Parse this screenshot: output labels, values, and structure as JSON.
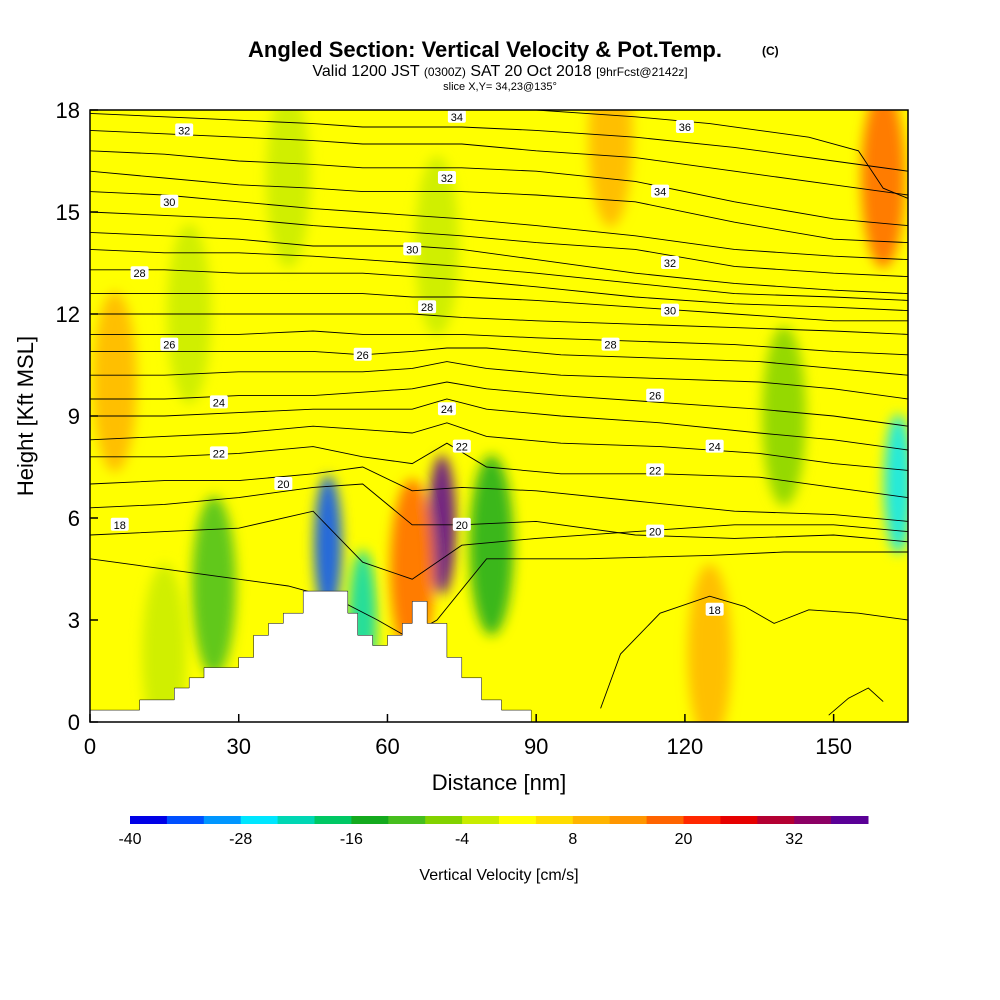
{
  "chart_data": {
    "type": "heatmap",
    "title": "Angled Section: Vertical Velocity & Pot.Temp.",
    "title_unit": "(C)",
    "subtitle_parts": [
      "Valid 1200 JST",
      "(0300Z)",
      "SAT 20 Oct 2018",
      "[9hrFcst@2142z]"
    ],
    "slice_label": "slice X,Y= 34,23@135°",
    "xlabel": "Distance [nm]",
    "ylabel": "Height [Kft MSL]",
    "xlim": [
      0,
      165
    ],
    "ylim": [
      0,
      18
    ],
    "x_ticks": [
      "0",
      "30",
      "60",
      "90",
      "120",
      "150"
    ],
    "y_ticks": [
      "0",
      "3",
      "6",
      "9",
      "12",
      "15",
      "18"
    ],
    "colorbar": {
      "label": "Vertical Velocity [cm/s]",
      "ticks": [
        "-40",
        "-28",
        "-16",
        "-4",
        "8",
        "20",
        "32"
      ],
      "colors": [
        "#0000e6",
        "#0050ff",
        "#0096ff",
        "#00e6ff",
        "#00d7b4",
        "#00c864",
        "#14aa1e",
        "#46be1e",
        "#82d200",
        "#c8ec00",
        "#ffff00",
        "#ffdc00",
        "#ffb400",
        "#ff9600",
        "#ff6400",
        "#ff2800",
        "#e60000",
        "#b40032",
        "#8c0064",
        "#5a0096"
      ]
    },
    "background_value": 0,
    "velocity_features": [
      {
        "x": 48,
        "y": 5.2,
        "value": -36
      },
      {
        "x": 55,
        "y": 3.0,
        "value": -24
      },
      {
        "x": 71,
        "y": 5.8,
        "value": 36
      },
      {
        "x": 65,
        "y": 4.5,
        "value": 18
      },
      {
        "x": 81,
        "y": 5.2,
        "value": -16
      },
      {
        "x": 163,
        "y": 7.0,
        "value": -26
      },
      {
        "x": 160,
        "y": 16.0,
        "value": 16
      },
      {
        "x": 105,
        "y": 17.2,
        "value": 10
      },
      {
        "x": 25,
        "y": 4.0,
        "value": -12
      },
      {
        "x": 125,
        "y": 2.0,
        "value": 10
      },
      {
        "x": 15,
        "y": 2.0,
        "value": -4
      },
      {
        "x": 20,
        "y": 12.0,
        "value": -4
      },
      {
        "x": 40,
        "y": 16.0,
        "value": -4
      },
      {
        "x": 70,
        "y": 14.0,
        "value": -4
      },
      {
        "x": 140,
        "y": 9.0,
        "value": -6
      },
      {
        "x": 5,
        "y": 10.0,
        "value": 10
      }
    ],
    "terrain_x": [
      0,
      10,
      10,
      17,
      17,
      20,
      20,
      23,
      23,
      30,
      30,
      33,
      33,
      36,
      36,
      39,
      39,
      43,
      43,
      52,
      52,
      54,
      54,
      57,
      57,
      60,
      60,
      63,
      63,
      65,
      65,
      68,
      68,
      72,
      72,
      75,
      75,
      79,
      79,
      83,
      83,
      89,
      89,
      165
    ],
    "terrain_y": [
      0.35,
      0.35,
      0.65,
      0.65,
      1.0,
      1.0,
      1.3,
      1.3,
      1.6,
      1.6,
      1.9,
      1.9,
      2.55,
      2.55,
      2.9,
      2.9,
      3.2,
      3.2,
      3.85,
      3.85,
      3.2,
      3.2,
      2.55,
      2.55,
      2.25,
      2.25,
      2.55,
      2.55,
      2.9,
      2.9,
      3.55,
      3.55,
      2.9,
      2.9,
      1.9,
      1.9,
      1.3,
      1.3,
      0.65,
      0.65,
      0.35,
      0.35,
      0.0,
      0.0
    ],
    "isentropes": [
      {
        "label": "18",
        "x": [
          0,
          10,
          25,
          40,
          50,
          58,
          64,
          70,
          80,
          100,
          125,
          140,
          155,
          165
        ],
        "y": [
          4.8,
          4.6,
          4.3,
          4.0,
          3.6,
          3.0,
          2.5,
          3.0,
          4.8,
          4.8,
          4.9,
          5.0,
          5.0,
          5.0
        ],
        "label_at": [
          0,
          1
        ]
      },
      {
        "label": "18",
        "x": [
          103,
          107,
          115,
          125,
          132,
          138,
          145,
          155,
          165
        ],
        "y": [
          0.4,
          2.0,
          3.2,
          3.7,
          3.4,
          2.9,
          3.3,
          3.2,
          3.0
        ],
        "label_at": [
          0,
          1
        ]
      },
      {
        "label": "18",
        "x": [
          149,
          153,
          157,
          160
        ],
        "y": [
          0.2,
          0.7,
          1.0,
          0.6
        ],
        "label_at": [
          0,
          1
        ]
      },
      {
        "label": "18",
        "x": [
          0,
          15,
          30,
          45,
          55,
          65,
          75,
          90,
          110,
          130,
          150,
          165
        ],
        "y": [
          5.5,
          5.6,
          5.7,
          6.2,
          4.7,
          4.2,
          5.2,
          5.4,
          5.6,
          5.8,
          5.8,
          5.6
        ],
        "label_at": [
          6,
          5.8
        ]
      },
      {
        "label": "20",
        "x": [
          0,
          15,
          30,
          45,
          55,
          65,
          75,
          90,
          110,
          130,
          150,
          165
        ],
        "y": [
          6.3,
          6.4,
          6.6,
          6.9,
          7.0,
          5.8,
          5.8,
          5.9,
          5.5,
          5.4,
          5.5,
          5.3
        ],
        "label_at": [
          74,
          5.8
        ]
      },
      {
        "label": "20",
        "x": [
          0,
          15,
          30,
          45,
          55,
          65,
          75,
          90,
          110,
          130,
          150,
          165
        ],
        "y": [
          7.0,
          7.1,
          7.1,
          7.3,
          7.5,
          6.8,
          6.9,
          6.8,
          6.5,
          6.2,
          6.1,
          5.9
        ],
        "label_at": [
          34,
          6.9
        ]
      },
      {
        "label": "22",
        "x": [
          0,
          15,
          30,
          45,
          55,
          65,
          72,
          80,
          95,
          115,
          135,
          150,
          165
        ],
        "y": [
          7.8,
          7.8,
          7.9,
          8.1,
          7.8,
          7.6,
          8.2,
          7.5,
          7.3,
          7.3,
          7.2,
          6.9,
          6.6
        ],
        "label_at": [
          28,
          7.8
        ]
      },
      {
        "label": "22",
        "x": [
          0,
          15,
          30,
          45,
          55,
          65,
          72,
          80,
          95,
          115,
          135,
          150,
          165
        ],
        "y": [
          8.3,
          8.4,
          8.5,
          8.7,
          8.6,
          8.5,
          8.8,
          8.4,
          8.2,
          8.1,
          7.9,
          7.6,
          7.4
        ],
        "label_at": [
          114,
          7.5
        ]
      },
      {
        "label": "24",
        "x": [
          0,
          15,
          30,
          45,
          55,
          65,
          72,
          80,
          95,
          115,
          135,
          150,
          165
        ],
        "y": [
          9.0,
          9.0,
          9.1,
          9.2,
          9.2,
          9.2,
          9.5,
          9.2,
          9.0,
          8.8,
          8.5,
          8.3,
          8.0
        ],
        "label_at": [
          72,
          9.1
        ]
      },
      {
        "label": "24",
        "x": [
          0,
          15,
          30,
          45,
          55,
          65,
          72,
          80,
          95,
          115,
          135,
          150,
          165
        ],
        "y": [
          9.5,
          9.5,
          9.6,
          9.6,
          9.7,
          9.8,
          10.0,
          9.8,
          9.6,
          9.4,
          9.2,
          9.0,
          8.7
        ],
        "label_at": [
          25,
          9.5
        ]
      },
      {
        "label": "26",
        "x": [
          0,
          15,
          30,
          45,
          55,
          65,
          72,
          80,
          95,
          115,
          135,
          150,
          165
        ],
        "y": [
          10.2,
          10.2,
          10.3,
          10.3,
          10.3,
          10.4,
          10.6,
          10.4,
          10.2,
          10.1,
          10.0,
          9.8,
          9.5
        ],
        "label_at": [
          114,
          9.8
        ]
      },
      {
        "label": "26",
        "x": [
          0,
          15,
          30,
          45,
          55,
          65,
          72,
          80,
          95,
          115,
          135,
          150,
          165
        ],
        "y": [
          10.9,
          10.9,
          10.9,
          10.9,
          10.8,
          10.9,
          11.0,
          11.0,
          10.8,
          10.7,
          10.6,
          10.4,
          10.2
        ],
        "label_at": [
          56,
          10.7
        ]
      },
      {
        "label": "28",
        "x": [
          0,
          15,
          30,
          45,
          55,
          65,
          75,
          90,
          110,
          130,
          150,
          165
        ],
        "y": [
          11.4,
          11.4,
          11.4,
          11.5,
          11.4,
          11.4,
          11.4,
          11.3,
          11.2,
          11.1,
          10.9,
          10.8
        ],
        "label_at": [
          106,
          11.1
        ]
      },
      {
        "label": "28",
        "x": [
          0,
          15,
          30,
          45,
          55,
          65,
          75,
          90,
          110,
          130,
          150,
          165
        ],
        "y": [
          12.0,
          12.0,
          12.0,
          12.0,
          12.0,
          12.0,
          11.9,
          11.8,
          11.7,
          11.6,
          11.5,
          11.4
        ],
        "label_at": [
          69,
          11.9
        ]
      },
      {
        "label": "30",
        "x": [
          0,
          15,
          30,
          45,
          55,
          65,
          75,
          90,
          110,
          130,
          150,
          165
        ],
        "y": [
          12.6,
          12.6,
          12.6,
          12.6,
          12.6,
          12.5,
          12.5,
          12.4,
          12.2,
          12.0,
          11.8,
          11.8
        ],
        "label_at": [
          117,
          12.0
        ]
      },
      {
        "label": "26",
        "x": [
          0,
          15,
          30,
          45,
          55,
          65,
          75,
          90,
          110,
          130,
          150,
          165
        ],
        "y": [
          13.3,
          13.3,
          13.2,
          13.2,
          13.2,
          13.1,
          13.0,
          12.8,
          12.5,
          12.3,
          12.2,
          12.1
        ],
        "label_at": [
          16,
          11.1
        ]
      },
      {
        "label": "28",
        "x": [
          0,
          15,
          30,
          45,
          55,
          65,
          75,
          90,
          110,
          130,
          150,
          165
        ],
        "y": [
          13.9,
          13.8,
          13.8,
          13.7,
          13.6,
          13.5,
          13.4,
          13.2,
          12.9,
          12.6,
          12.5,
          12.4
        ],
        "label_at": [
          10,
          13.2
        ]
      },
      {
        "label": "30",
        "x": [
          0,
          15,
          30,
          45,
          55,
          65,
          75,
          90,
          110,
          130,
          150,
          165
        ],
        "y": [
          14.4,
          14.3,
          14.2,
          14.0,
          14.0,
          14.0,
          13.9,
          13.6,
          13.2,
          12.9,
          12.7,
          12.6
        ],
        "label_at": [
          65,
          13.9
        ]
      },
      {
        "label": "32",
        "x": [
          0,
          15,
          30,
          45,
          55,
          65,
          75,
          90,
          110,
          130,
          150,
          165
        ],
        "y": [
          15.0,
          14.9,
          14.8,
          14.6,
          14.5,
          14.4,
          14.3,
          14.1,
          13.9,
          13.4,
          13.2,
          13.1
        ],
        "label_at": [
          117,
          13.5
        ]
      },
      {
        "label": "30",
        "x": [
          0,
          15,
          30,
          45,
          55,
          65,
          75,
          90,
          110,
          130,
          150,
          165
        ],
        "y": [
          15.6,
          15.5,
          15.3,
          15.1,
          15.0,
          14.9,
          14.8,
          14.6,
          14.3,
          13.9,
          13.7,
          13.6
        ],
        "label_at": [
          15,
          15.3
        ]
      },
      {
        "label": "32",
        "x": [
          0,
          15,
          30,
          45,
          55,
          65,
          75,
          90,
          110,
          130,
          150,
          165
        ],
        "y": [
          16.2,
          16.0,
          15.8,
          15.7,
          15.6,
          15.6,
          15.6,
          15.5,
          15.3,
          14.7,
          14.2,
          14.1
        ],
        "label_at": [
          72,
          15.6
        ]
      },
      {
        "label": "34",
        "x": [
          0,
          15,
          30,
          45,
          55,
          65,
          75,
          90,
          110,
          130,
          150,
          165
        ],
        "y": [
          16.8,
          16.7,
          16.5,
          16.4,
          16.3,
          16.3,
          16.3,
          16.2,
          15.9,
          15.3,
          14.8,
          14.6
        ],
        "label_at": [
          116,
          15.6
        ]
      },
      {
        "label": "32",
        "x": [
          0,
          15,
          30,
          45,
          55,
          65,
          75,
          90,
          110,
          130,
          150,
          165
        ],
        "y": [
          17.4,
          17.3,
          17.2,
          17.1,
          17.0,
          17.0,
          17.0,
          16.8,
          16.6,
          16.2,
          15.8,
          15.5
        ],
        "label_at": [
          17,
          17.3
        ]
      },
      {
        "label": "34",
        "x": [
          0,
          15,
          30,
          45,
          55,
          65,
          75,
          90,
          110,
          130,
          150,
          165
        ],
        "y": [
          17.9,
          17.8,
          17.7,
          17.6,
          17.5,
          17.5,
          17.5,
          17.4,
          17.2,
          16.9,
          16.5,
          16.2
        ],
        "label_at": [
          67,
          17.5
        ]
      },
      {
        "label": "36",
        "x": [
          90,
          100,
          110,
          125,
          135,
          145,
          155,
          160,
          165
        ],
        "y": [
          18.0,
          17.9,
          17.8,
          17.6,
          17.4,
          17.2,
          16.8,
          15.7,
          15.4
        ],
        "label_at": [
          120,
          17.5
        ]
      }
    ],
    "contour_labels": [
      {
        "text": "18",
        "x": 6,
        "y": 5.8
      },
      {
        "text": "20",
        "x": 39,
        "y": 7.0
      },
      {
        "text": "22",
        "x": 26,
        "y": 7.9
      },
      {
        "text": "24",
        "x": 26,
        "y": 9.4
      },
      {
        "text": "26",
        "x": 16,
        "y": 11.1
      },
      {
        "text": "28",
        "x": 10,
        "y": 13.2
      },
      {
        "text": "30",
        "x": 16,
        "y": 15.3
      },
      {
        "text": "32",
        "x": 19,
        "y": 17.4
      },
      {
        "text": "34",
        "x": 74,
        "y": 17.8
      },
      {
        "text": "32",
        "x": 72,
        "y": 16.0
      },
      {
        "text": "30",
        "x": 65,
        "y": 13.9
      },
      {
        "text": "28",
        "x": 68,
        "y": 12.2
      },
      {
        "text": "26",
        "x": 55,
        "y": 10.8
      },
      {
        "text": "24",
        "x": 72,
        "y": 9.2
      },
      {
        "text": "22",
        "x": 75,
        "y": 8.1
      },
      {
        "text": "20",
        "x": 75,
        "y": 5.8
      },
      {
        "text": "20",
        "x": 114,
        "y": 5.6
      },
      {
        "text": "22",
        "x": 114,
        "y": 7.4
      },
      {
        "text": "24",
        "x": 126,
        "y": 8.1
      },
      {
        "text": "26",
        "x": 114,
        "y": 9.6
      },
      {
        "text": "28",
        "x": 105,
        "y": 11.1
      },
      {
        "text": "30",
        "x": 117,
        "y": 12.1
      },
      {
        "text": "32",
        "x": 117,
        "y": 13.5
      },
      {
        "text": "34",
        "x": 115,
        "y": 15.6
      },
      {
        "text": "36",
        "x": 120,
        "y": 17.5
      },
      {
        "text": "18",
        "x": 126,
        "y": 3.3
      }
    ]
  }
}
